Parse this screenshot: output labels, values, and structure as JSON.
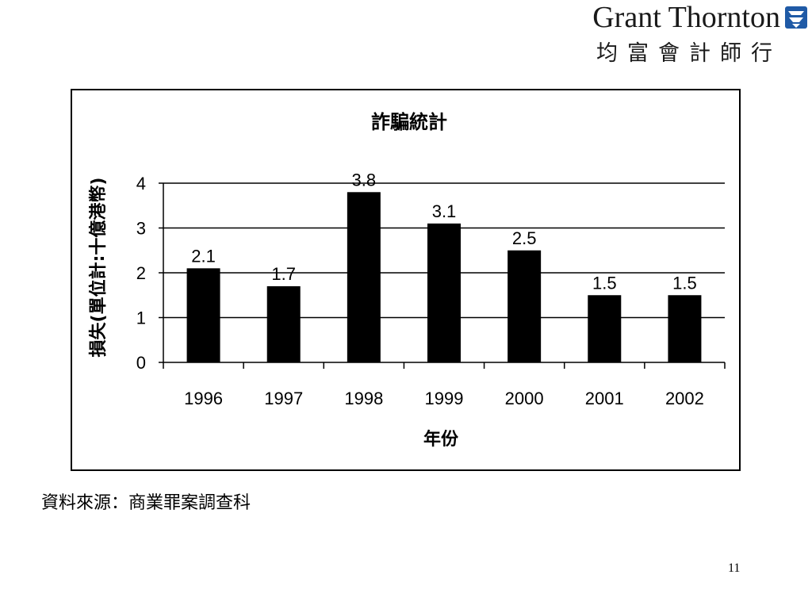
{
  "logo": {
    "name_en": "Grant Thornton",
    "name_zh": "均富會計師行",
    "brand_color": "#1f5aa6"
  },
  "chart_data": {
    "type": "bar",
    "title": "詐騙統計",
    "xlabel": "年份",
    "ylabel": "損失(單位計:十億港幣)",
    "categories": [
      "1996",
      "1997",
      "1998",
      "1999",
      "2000",
      "2001",
      "2002"
    ],
    "values": [
      2.1,
      1.7,
      3.8,
      3.1,
      2.5,
      1.5,
      1.5
    ],
    "data_labels": [
      "2.1",
      "1.7",
      "3.8",
      "3.1",
      "2.5",
      "1.5",
      "1.5"
    ],
    "ylim": [
      0,
      4
    ],
    "yticks": [
      "0",
      "1",
      "2",
      "3",
      "4"
    ],
    "grid": true,
    "bar_color": "#000000"
  },
  "footer": {
    "source": "資料來源：商業罪案調查科",
    "page_number": "11"
  }
}
